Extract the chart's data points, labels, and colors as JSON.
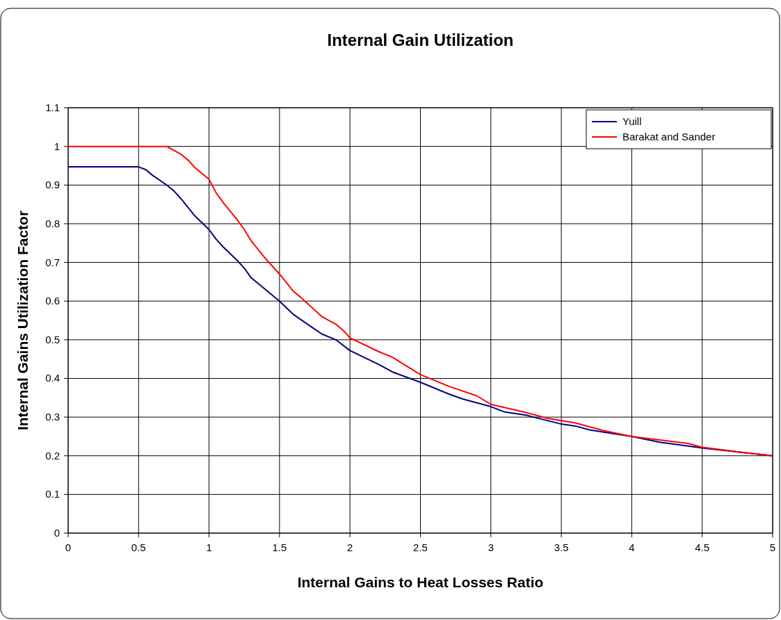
{
  "chart_data": {
    "type": "line",
    "title": "Internal Gain Utilization",
    "xlabel": "Internal Gains to Heat Losses Ratio",
    "ylabel": "Internal Gains Utilization Factor",
    "xlim": [
      0,
      5
    ],
    "xticks": [
      0,
      0.5,
      1,
      1.5,
      2,
      2.5,
      3,
      3.5,
      4,
      4.5,
      5
    ],
    "ylim": [
      0,
      1.1
    ],
    "yticks": [
      0,
      0.1,
      0.2,
      0.3,
      0.4,
      0.5,
      0.6,
      0.7,
      0.8,
      0.9,
      1,
      1.1
    ],
    "grid": true,
    "legend": "top right",
    "marker": "none",
    "line_style": "solid",
    "series": [
      {
        "name": "Yuill",
        "color": "#000080",
        "x": [
          0,
          0.5,
          0.55,
          0.6,
          0.7,
          0.75,
          0.8,
          0.9,
          1.0,
          1.05,
          1.1,
          1.2,
          1.25,
          1.3,
          1.4,
          1.5,
          1.6,
          1.7,
          1.8,
          1.9,
          2.0,
          2.2,
          2.3,
          2.5,
          2.7,
          2.8,
          3.0,
          3.1,
          3.25,
          3.5,
          3.6,
          3.7,
          4.0,
          4.2,
          4.5,
          5
        ],
        "values": [
          0.947,
          0.947,
          0.94,
          0.925,
          0.9,
          0.885,
          0.865,
          0.82,
          0.785,
          0.76,
          0.74,
          0.705,
          0.685,
          0.66,
          0.63,
          0.6,
          0.565,
          0.54,
          0.515,
          0.5,
          0.472,
          0.437,
          0.417,
          0.39,
          0.36,
          0.347,
          0.327,
          0.313,
          0.305,
          0.282,
          0.277,
          0.267,
          0.25,
          0.235,
          0.22,
          0.2
        ]
      },
      {
        "name": "Barakat and Sander",
        "color": "#ff0000",
        "x": [
          0,
          0.7,
          0.8,
          0.85,
          0.9,
          1.0,
          1.05,
          1.1,
          1.2,
          1.25,
          1.3,
          1.4,
          1.5,
          1.6,
          1.65,
          1.8,
          1.9,
          1.95,
          2.0,
          2.2,
          2.3,
          2.5,
          2.7,
          2.9,
          3.0,
          3.25,
          3.4,
          3.6,
          3.8,
          4.0,
          4.4,
          4.5,
          4.8,
          5
        ],
        "values": [
          1,
          1,
          0.98,
          0.965,
          0.945,
          0.915,
          0.88,
          0.855,
          0.81,
          0.785,
          0.755,
          0.71,
          0.67,
          0.625,
          0.61,
          0.56,
          0.54,
          0.525,
          0.505,
          0.47,
          0.455,
          0.41,
          0.38,
          0.355,
          0.333,
          0.312,
          0.297,
          0.285,
          0.265,
          0.25,
          0.232,
          0.222,
          0.208,
          0.2
        ]
      }
    ]
  }
}
